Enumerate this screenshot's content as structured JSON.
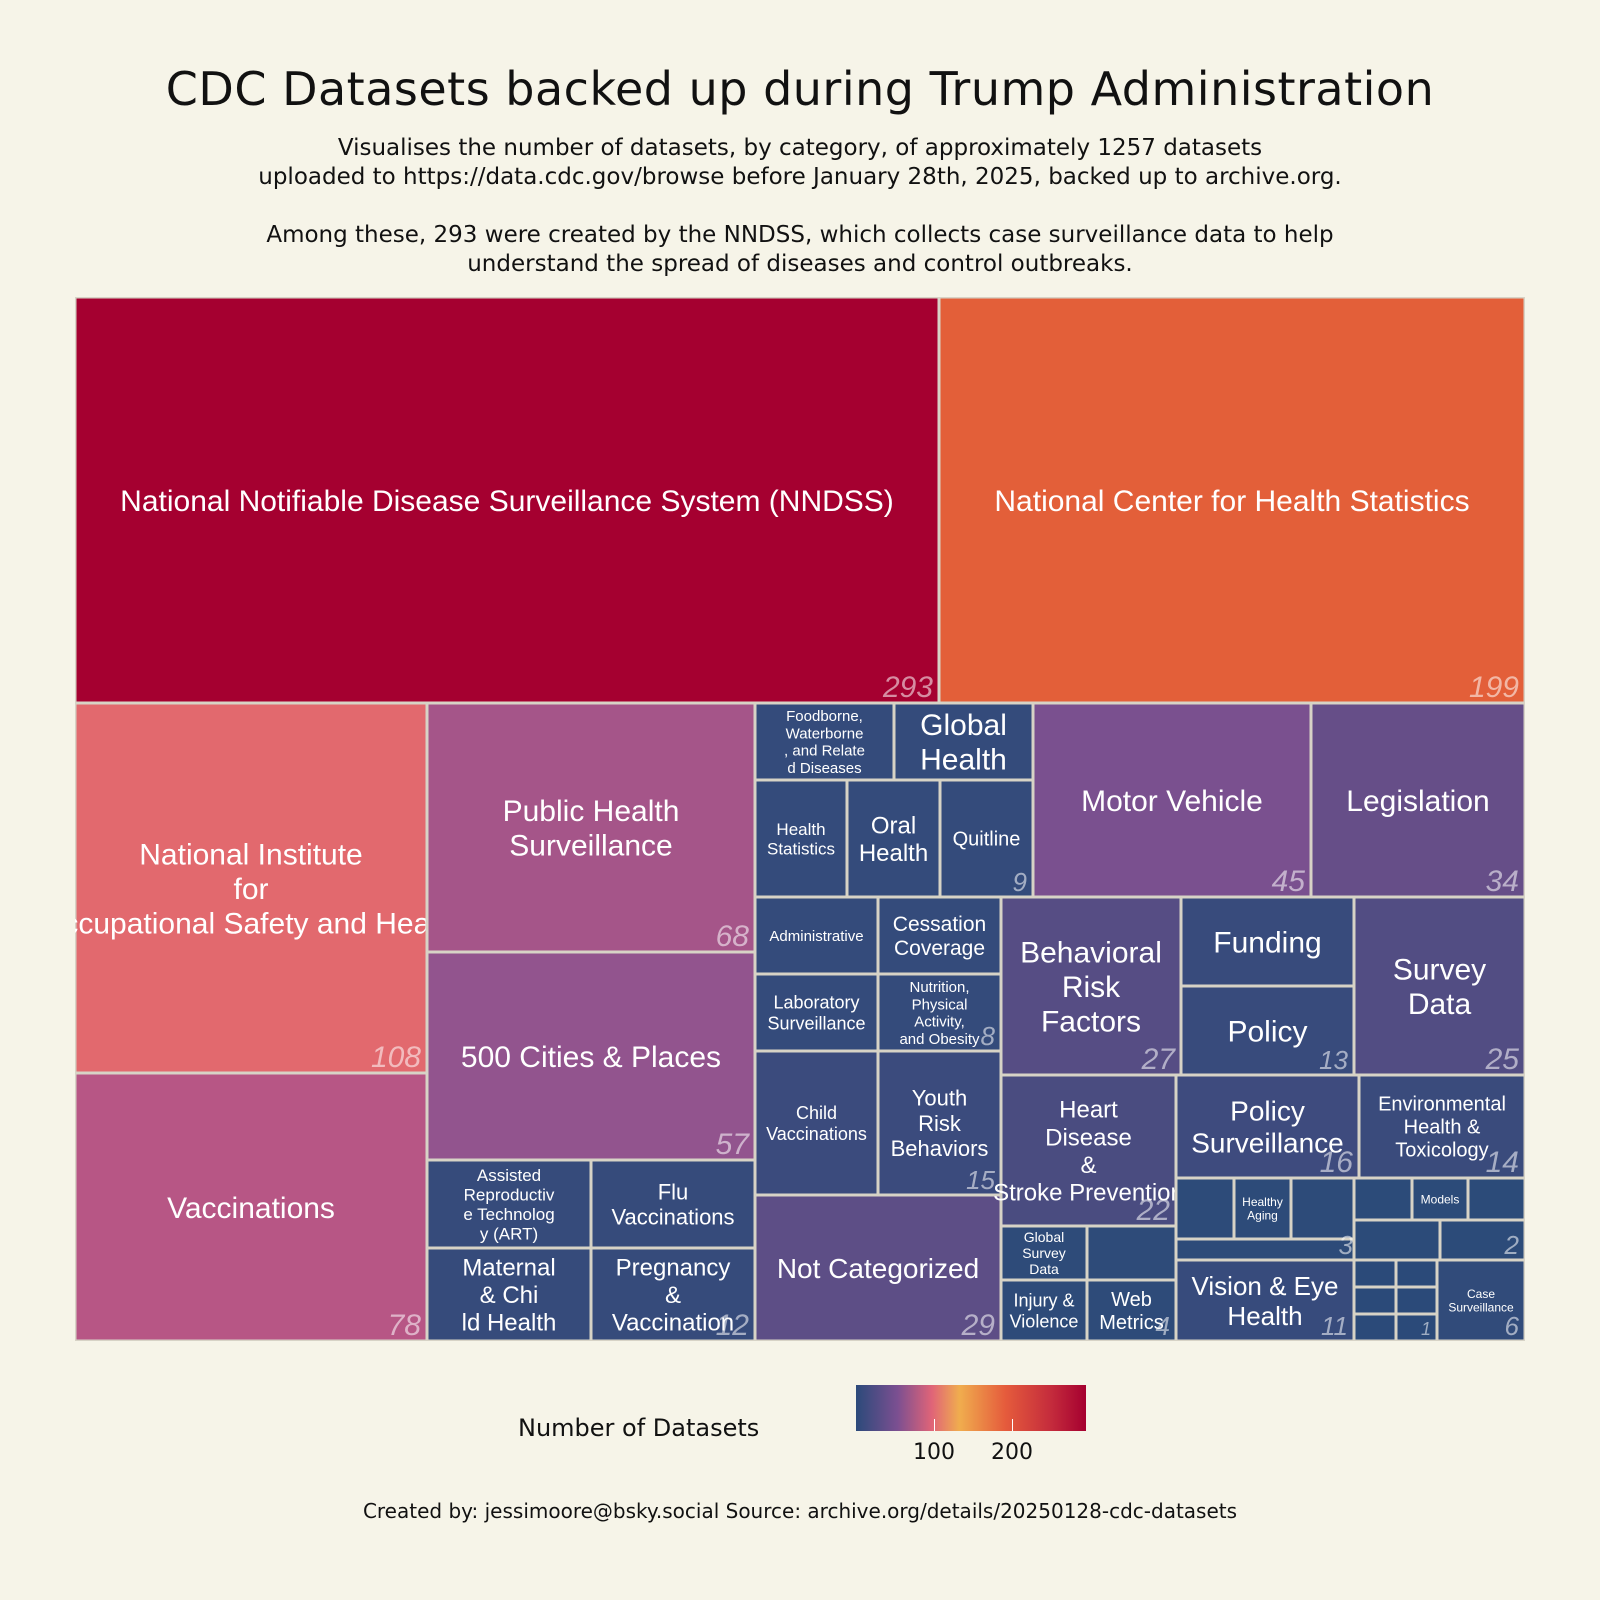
{
  "title": "CDC Datasets backed up during Trump Administration",
  "subtitle_lines_1": [
    "Visualises the number of datasets, by category, of approximately 1257 datasets",
    "uploaded to https://data.cdc.gov/browse before January 28th, 2025, backed up to archive.org."
  ],
  "subtitle_lines_2": [
    "Among these, 293 were created by the NNDSS, which collects case surveillance data to help",
    "understand the spread of diseases and control outbreaks."
  ],
  "legend": {
    "title": "Number of Datasets",
    "ticks": [
      "100",
      "200"
    ],
    "tick_values": [
      100,
      200
    ],
    "range": [
      1,
      293
    ],
    "colors": [
      "#2b4a7a",
      "#7b4f91",
      "#e06478",
      "#f0ad4e",
      "#e55b3c",
      "#a50030"
    ]
  },
  "caption": "Created by: jessimoore@bsky.social  Source: archive.org/details/20250128-cdc-datasets",
  "chart_data": {
    "type": "treemap",
    "title": "CDC Datasets backed up during Trump Administration",
    "value_label": "Number of Datasets",
    "items": [
      {
        "label": "National Notifiable Disease Surveillance System (NNDSS)",
        "value": 293,
        "value_text": "293",
        "color": "#a50030"
      },
      {
        "label": "National Center for Health Statistics",
        "value": 199,
        "value_text": "199",
        "color": "#e35f39"
      },
      {
        "label": "National Institute for Occupational Safety and Health",
        "value": 108,
        "value_text": "108",
        "color": "#e2696e"
      },
      {
        "label": "Vaccinations",
        "value": 78,
        "value_text": "78",
        "color": "#b75685"
      },
      {
        "label": "Public Health Surveillance",
        "value": 68,
        "value_text": "68",
        "color": "#a55589"
      },
      {
        "label": "500 Cities & Places",
        "value": 57,
        "value_text": "57",
        "color": "#92548e"
      },
      {
        "label": "Assisted Reproductive Technology (ART)",
        "value": 12,
        "value_text": "",
        "color": "#364b7b"
      },
      {
        "label": "Flu Vaccinations",
        "value": 12,
        "value_text": "",
        "color": "#364b7b"
      },
      {
        "label": "Maternal & Child Health",
        "value": 12,
        "value_text": "",
        "color": "#364b7b"
      },
      {
        "label": "Pregnancy & Vaccination",
        "value": 12,
        "value_text": "12",
        "color": "#364b7b"
      },
      {
        "label": "Foodborne, Waterborne, and Related Diseases",
        "value": 9,
        "value_text": "",
        "color": "#344b7b"
      },
      {
        "label": "Global Health",
        "value": 9,
        "value_text": "",
        "color": "#344b7b"
      },
      {
        "label": "Health Statistics",
        "value": 9,
        "value_text": "",
        "color": "#344b7b"
      },
      {
        "label": "Oral Health",
        "value": 9,
        "value_text": "",
        "color": "#344b7b"
      },
      {
        "label": "Quitline",
        "value": 9,
        "value_text": "9",
        "color": "#344b7b"
      },
      {
        "label": "Motor Vehicle",
        "value": 45,
        "value_text": "45",
        "color": "#7a508f"
      },
      {
        "label": "Legislation",
        "value": 34,
        "value_text": "34",
        "color": "#664e88"
      },
      {
        "label": "Administrative",
        "value": 8,
        "value_text": "",
        "color": "#344b7b"
      },
      {
        "label": "Cessation Coverage",
        "value": 8,
        "value_text": "",
        "color": "#344b7b"
      },
      {
        "label": "Laboratory Surveillance",
        "value": 8,
        "value_text": "",
        "color": "#344b7b"
      },
      {
        "label": "Nutrition, Physical Activity, and Obesity",
        "value": 8,
        "value_text": "8",
        "color": "#344b7b"
      },
      {
        "label": "Child Vaccinations",
        "value": 15,
        "value_text": "",
        "color": "#3b4b7d"
      },
      {
        "label": "Youth Risk Behaviors",
        "value": 15,
        "value_text": "15",
        "color": "#3b4b7d"
      },
      {
        "label": "Not Categorized",
        "value": 29,
        "value_text": "29",
        "color": "#5d4e86"
      },
      {
        "label": "Behavioral Risk Factors",
        "value": 27,
        "value_text": "27",
        "color": "#564d84"
      },
      {
        "label": "Heart Disease & Stroke Prevention",
        "value": 22,
        "value_text": "22",
        "color": "#4a4c80"
      },
      {
        "label": "Global Survey Data",
        "value": 4,
        "value_text": "",
        "color": "#2e4b79"
      },
      {
        "label": "",
        "value": 4,
        "value_text": "",
        "color": "#2e4b79"
      },
      {
        "label": "Injury & Violence",
        "value": 4,
        "value_text": "",
        "color": "#2e4b79"
      },
      {
        "label": "Web Metrics",
        "value": 4,
        "value_text": "4",
        "color": "#2e4b79"
      },
      {
        "label": "Funding",
        "value": 13,
        "value_text": "",
        "color": "#384b7c"
      },
      {
        "label": "Policy",
        "value": 13,
        "value_text": "13",
        "color": "#384b7c"
      },
      {
        "label": "Survey Data",
        "value": 25,
        "value_text": "25",
        "color": "#524d83"
      },
      {
        "label": "Policy Surveillance",
        "value": 16,
        "value_text": "16",
        "color": "#3e4b7e"
      },
      {
        "label": "Environmental Health & Toxicology",
        "value": 14,
        "value_text": "14",
        "color": "#3a4b7c"
      },
      {
        "label": "",
        "value": 3,
        "value_text": "",
        "color": "#2d4b79"
      },
      {
        "label": "Healthy Aging",
        "value": 3,
        "value_text": "",
        "color": "#2d4b79"
      },
      {
        "label": "",
        "value": 3,
        "value_text": "",
        "color": "#2d4b79"
      },
      {
        "label": "",
        "value": 3,
        "value_text": "3",
        "color": "#2d4b79"
      },
      {
        "label": "",
        "value": 2,
        "value_text": "",
        "color": "#2c4b79"
      },
      {
        "label": "Models",
        "value": 2,
        "value_text": "",
        "color": "#2c4b79"
      },
      {
        "label": "",
        "value": 2,
        "value_text": "",
        "color": "#2c4b79"
      },
      {
        "label": "",
        "value": 2,
        "value_text": "",
        "color": "#2c4b79"
      },
      {
        "label": "",
        "value": 2,
        "value_text": "2",
        "color": "#2c4b79"
      },
      {
        "label": "Vision & Eye Health",
        "value": 11,
        "value_text": "11",
        "color": "#374b7c"
      },
      {
        "label": "",
        "value": 1,
        "value_text": "",
        "color": "#2b4a79"
      },
      {
        "label": "",
        "value": 1,
        "value_text": "",
        "color": "#2b4a79"
      },
      {
        "label": "",
        "value": 1,
        "value_text": "",
        "color": "#2b4a79"
      },
      {
        "label": "",
        "value": 1,
        "value_text": "",
        "color": "#2b4a79"
      },
      {
        "label": "",
        "value": 1,
        "value_text": "",
        "color": "#2b4a79"
      },
      {
        "label": "",
        "value": 1,
        "value_text": "1",
        "color": "#2b4a79"
      },
      {
        "label": "Case Surveillance",
        "value": 6,
        "value_text": "6",
        "color": "#314b7a"
      }
    ]
  }
}
